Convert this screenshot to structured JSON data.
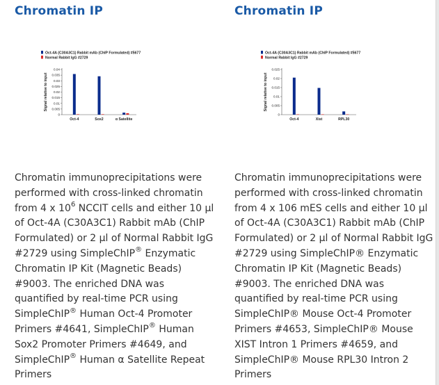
{
  "colors": {
    "title": "#1a5aa6",
    "series_oct4a": "#0b2c8c",
    "series_igg": "#d92b2b",
    "body_text": "#333333"
  },
  "panels": [
    {
      "title": "Chromatin IP",
      "description": [
        {
          "text": "Chromatin immunoprecipitations were performed with cross-linked chromatin from 4 x 10"
        },
        {
          "sup": "6"
        },
        {
          "text": " NCCIT cells and either 10 µl of Oct-4A (C30A3C1) Rabbit mAb (ChIP Formulated) or 2 µl of Normal Rabbit IgG #2729 using SimpleChIP"
        },
        {
          "sup": "®"
        },
        {
          "text": " Enzymatic Chromatin IP Kit (Magnetic Beads) #9003. The enriched DNA was quantified by real-time PCR using SimpleChIP"
        },
        {
          "sup": "®"
        },
        {
          "text": " Human Oct-4 Promoter Primers #4641, SimpleChIP"
        },
        {
          "sup": "®"
        },
        {
          "text": " Human Sox2 Promoter Primers #4649, and SimpleChIP"
        },
        {
          "sup": "®"
        },
        {
          "text": " Human α Satellite Repeat Primers"
        }
      ]
    },
    {
      "title": "Chromatin IP",
      "description": [
        {
          "text": "Chromatin immunoprecipitations were performed with cross-linked chromatin from 4 x 106 mES cells and either 10 µl of Oct-4A (C30A3C1) Rabbit mAb (ChIP Formulated) or 2 µl of Normal Rabbit IgG #2729 using SimpleChIP® Enzymatic Chromatin IP Kit (Magnetic Beads) #9003. The enriched DNA was quantified by real-time PCR using SimpleChIP® Mouse Oct-4 Promoter Primers #4653, SimpleChIP® Mouse XIST Intron 1 Primers #4659, and SimpleChIP® Mouse RPL30 Intron 2 Primers"
        }
      ]
    }
  ],
  "chart_data": [
    {
      "type": "bar",
      "title": "",
      "xlabel": "",
      "ylabel": "Signal relative to input",
      "categories": [
        "Oct-4",
        "Sox2",
        "α Satellite"
      ],
      "ylim": [
        0,
        0.04
      ],
      "yticks": [
        "0",
        "0.005",
        "0.01",
        "0.015",
        "0.02",
        "0.025",
        "0.03",
        "0.035",
        "0.04"
      ],
      "legend_position": "top-left",
      "series": [
        {
          "name": "Oct-4A (C30A3C1) Rabbit mAb (ChIP Formulated) #5677",
          "color": "#0b2c8c",
          "values": [
            0.036,
            0.034,
            0.0018
          ]
        },
        {
          "name": "Normal Rabbit IgG #2729",
          "color": "#d92b2b",
          "values": [
            0.0004,
            0.0004,
            0.0013
          ]
        }
      ]
    },
    {
      "type": "bar",
      "title": "",
      "xlabel": "",
      "ylabel": "Signal relative to input",
      "categories": [
        "Oct-4",
        "Xist",
        "RPL30"
      ],
      "ylim": [
        0,
        0.025
      ],
      "yticks": [
        "0",
        "0.005",
        "0.01",
        "0.015",
        "0.02",
        "0.025"
      ],
      "legend_position": "top-left",
      "series": [
        {
          "name": "Oct-4A (C30A3C1) Rabbit mAb (ChIP Formulated) #5677",
          "color": "#0b2c8c",
          "values": [
            0.0205,
            0.0148,
            0.0018
          ]
        },
        {
          "name": "Normal Rabbit IgG #2729",
          "color": "#d92b2b",
          "values": [
            0.0002,
            0.0002,
            0.0002
          ]
        }
      ]
    }
  ]
}
